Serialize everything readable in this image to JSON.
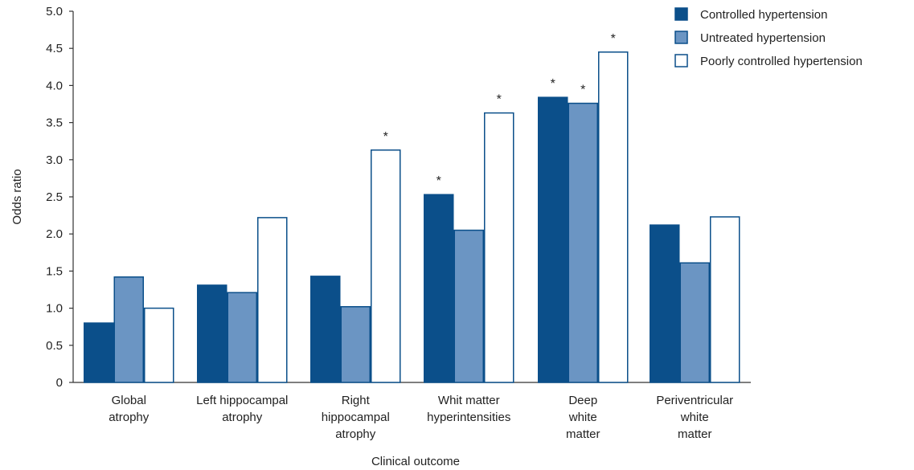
{
  "chart_data": {
    "type": "bar",
    "title": "",
    "xlabel": "Clinical outcome",
    "ylabel": "Odds ratio",
    "ylim": [
      0,
      5.0
    ],
    "yticks": [
      "0",
      "0.5",
      "1.0",
      "1.5",
      "2.0",
      "2.5",
      "3.0",
      "3.5",
      "4.0",
      "4.5",
      "5.0"
    ],
    "grid": false,
    "legend_position": "top-right",
    "categories": [
      [
        "Global",
        "atrophy"
      ],
      [
        "Left hippocampal",
        "atrophy"
      ],
      [
        "Right",
        "hippocampal",
        "atrophy"
      ],
      [
        "Whit matter",
        "hyperintensities"
      ],
      [
        "Deep",
        "white",
        "matter"
      ],
      [
        "Periventricular",
        "white",
        "matter"
      ]
    ],
    "series": [
      {
        "name": "Controlled hypertension",
        "fill": "#0b4f8a",
        "stroke": "#0b4f8a",
        "values": [
          0.8,
          1.31,
          1.43,
          2.53,
          3.84,
          2.12
        ],
        "significant": [
          false,
          false,
          false,
          true,
          true,
          false
        ]
      },
      {
        "name": "Untreated hypertension",
        "fill": "#6b95c3",
        "stroke": "#0b4f8a",
        "values": [
          1.42,
          1.21,
          1.02,
          2.05,
          3.76,
          1.61
        ],
        "significant": [
          false,
          false,
          false,
          false,
          true,
          false
        ]
      },
      {
        "name": "Poorly controlled hypertension",
        "fill": "#ffffff",
        "stroke": "#0b4f8a",
        "values": [
          1.0,
          2.22,
          3.13,
          3.63,
          4.45,
          2.23
        ],
        "significant": [
          false,
          false,
          true,
          true,
          true,
          false
        ]
      }
    ],
    "significance_marker": "*"
  }
}
